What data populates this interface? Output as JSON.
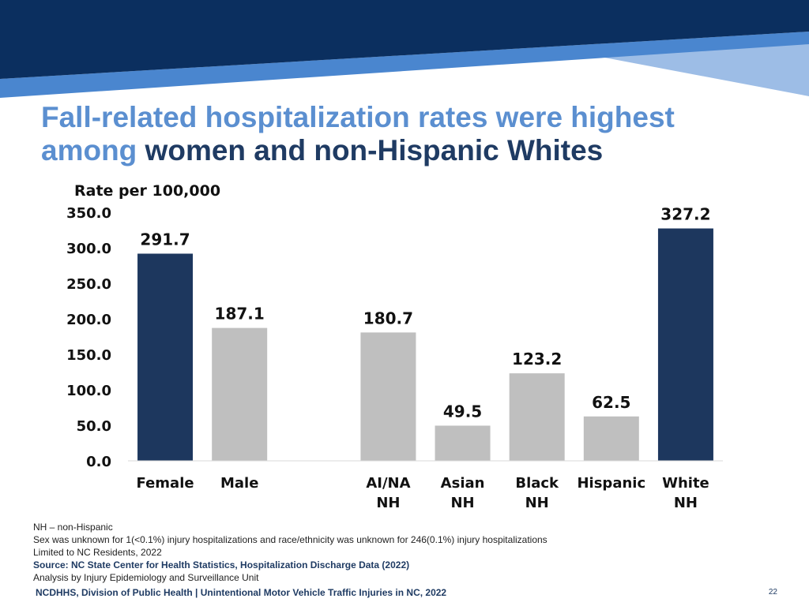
{
  "slide": {
    "title_line1": "Fall-related hospitalization rates were highest",
    "title_line2_accent": "among",
    "title_line2_rest": " women and non-Hispanic Whites",
    "notes": [
      "NH – non-Hispanic",
      "Sex was unknown for 1(<0.1%) injury hospitalizations and race/ethnicity was unknown for 246(0.1%) injury hospitalizations",
      "Limited to NC Residents, 2022"
    ],
    "source": "Source: NC State Center for Health Statistics, Hospitalization Discharge Data (2022)",
    "analysis": "Analysis by Injury Epidemiology and Surveillance Unit",
    "footer": "NCDHHS, Division of Public Health | Unintentional Motor Vehicle Traffic Injuries in NC, 2022",
    "page_number": "22"
  },
  "colors": {
    "banner_navy": "#0b2f5f",
    "banner_mid": "#4a86cf",
    "banner_light": "#9dbde6",
    "highlight_bar": "#1d375e",
    "other_bar": "#bfbfbf"
  },
  "chart_data": {
    "type": "bar",
    "ylabel": "Rate per 100,000",
    "ylim": [
      0,
      350
    ],
    "ytick_step": 50,
    "ytick_labels": [
      "0.0",
      "50.0",
      "100.0",
      "150.0",
      "200.0",
      "250.0",
      "300.0",
      "350.0"
    ],
    "grid": false,
    "categories": [
      {
        "label": [
          "Female"
        ],
        "value": 291.7,
        "value_label": "291.7",
        "highlight": true
      },
      {
        "label": [
          "Male"
        ],
        "value": 187.1,
        "value_label": "187.1",
        "highlight": false
      },
      {
        "label": [],
        "value": null,
        "value_label": null,
        "highlight": false
      },
      {
        "label": [
          "AI/NA",
          "NH"
        ],
        "value": 180.7,
        "value_label": "180.7",
        "highlight": false
      },
      {
        "label": [
          "Asian",
          "NH"
        ],
        "value": 49.5,
        "value_label": "49.5",
        "highlight": false
      },
      {
        "label": [
          "Black",
          "NH"
        ],
        "value": 123.2,
        "value_label": "123.2",
        "highlight": false
      },
      {
        "label": [
          "Hispanic"
        ],
        "value": 62.5,
        "value_label": "62.5",
        "highlight": false
      },
      {
        "label": [
          "White",
          "NH"
        ],
        "value": 327.2,
        "value_label": "327.2",
        "highlight": true
      }
    ]
  }
}
